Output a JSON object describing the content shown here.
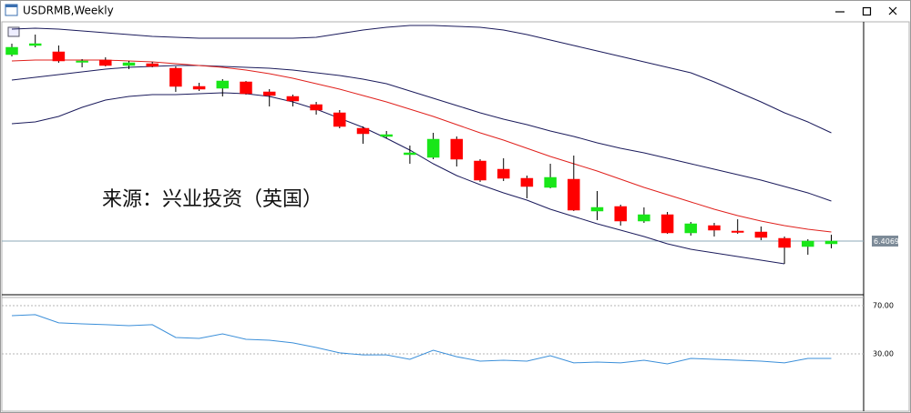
{
  "window": {
    "title": "USDRMB,Weekly"
  },
  "chart_data": [
    {
      "type": "candlestick",
      "annotation": "来源：兴业投资（英国）",
      "ylim": [
        6.2329,
        7.1269
      ],
      "current_price": 6.4069,
      "up_color": "#19e619",
      "down_color": "#ff0000",
      "wick_color": "#000000",
      "price_line_color": "#8eaab8",
      "open": [
        7.0219,
        7.0519,
        7.0309,
        6.9979,
        7.0039,
        6.9859,
        6.9919,
        6.9769,
        6.9169,
        6.9109,
        6.9319,
        6.8989,
        6.8839,
        6.8569,
        6.8299,
        6.7789,
        6.7519,
        6.6919,
        6.6829,
        6.7429,
        6.6709,
        6.6439,
        6.6139,
        6.5839,
        6.6109,
        6.5059,
        6.5209,
        6.4729,
        6.4939,
        6.4339,
        6.4579,
        6.4399,
        6.4369,
        6.4159,
        6.3889,
        6.3979
      ],
      "high": [
        7.0579,
        7.0879,
        7.0519,
        7.0069,
        7.0129,
        7.0009,
        6.9979,
        6.9829,
        6.9289,
        6.9409,
        6.9349,
        6.9079,
        6.8899,
        6.8659,
        6.8389,
        6.7849,
        6.7699,
        6.7219,
        6.7639,
        6.7519,
        6.6769,
        6.6799,
        6.6229,
        6.6619,
        6.6889,
        6.5719,
        6.5269,
        6.5179,
        6.5029,
        6.4699,
        6.4669,
        6.4789,
        6.4549,
        6.4219,
        6.4129,
        6.4279
      ],
      "low": [
        7.0159,
        7.0459,
        6.9949,
        6.9799,
        6.9829,
        6.9739,
        6.9799,
        6.8989,
        6.9019,
        6.8839,
        6.8899,
        6.8509,
        6.8509,
        6.8239,
        6.7789,
        6.7279,
        6.7459,
        6.6619,
        6.6769,
        6.6529,
        6.6019,
        6.6049,
        6.5479,
        6.5809,
        6.5059,
        6.4759,
        6.4579,
        6.4669,
        6.4309,
        6.4249,
        6.4219,
        6.4309,
        6.4099,
        6.3319,
        6.3619,
        6.3829
      ],
      "close": [
        7.0459,
        7.0579,
        7.0009,
        7.0009,
        6.9859,
        6.9949,
        6.9829,
        6.9169,
        6.9079,
        6.9349,
        6.8929,
        6.8869,
        6.8689,
        6.8389,
        6.7849,
        6.7609,
        6.7579,
        6.6979,
        6.7429,
        6.6769,
        6.6079,
        6.6139,
        6.5869,
        6.6169,
        6.5089,
        6.5179,
        6.4729,
        6.4939,
        6.4339,
        6.4639,
        6.4429,
        6.4369,
        6.4189,
        6.3859,
        6.4069,
        6.4069
      ],
      "series": [
        {
          "color": "#1b1b5c",
          "values": [
            7.1059,
            7.1089,
            7.1059,
            7.0999,
            7.0939,
            7.0879,
            7.0819,
            7.0789,
            7.0759,
            7.0759,
            7.0759,
            7.0759,
            7.0759,
            7.0789,
            7.0909,
            7.1029,
            7.1119,
            7.1179,
            7.1179,
            7.1149,
            7.1119,
            7.1029,
            7.0879,
            7.0699,
            7.0519,
            7.0339,
            7.0159,
            6.9979,
            6.9799,
            6.9619,
            6.9319,
            6.8989,
            6.8659,
            6.8299,
            6.7999,
            6.7639
          ]
        },
        {
          "color": "#1b1b5c",
          "values": [
            6.9379,
            6.9469,
            6.9559,
            6.9649,
            6.9739,
            6.9799,
            6.9829,
            6.9859,
            6.9859,
            6.9829,
            6.9799,
            6.9769,
            6.9709,
            6.9619,
            6.9529,
            6.9409,
            6.9259,
            6.9019,
            6.8779,
            6.8539,
            6.8299,
            6.8089,
            6.7909,
            6.7699,
            6.7519,
            6.7309,
            6.7129,
            6.6979,
            6.6799,
            6.6619,
            6.6439,
            6.6259,
            6.6079,
            6.5869,
            6.5659,
            6.5389
          ]
        },
        {
          "color": "#1b1b5c",
          "values": [
            6.7939,
            6.7999,
            6.8179,
            6.8479,
            6.8719,
            6.8839,
            6.8899,
            6.8899,
            6.8929,
            6.8959,
            6.8929,
            6.8839,
            6.8659,
            6.8419,
            6.8119,
            6.7819,
            6.7459,
            6.7069,
            6.6619,
            6.6229,
            6.5929,
            6.5659,
            6.5419,
            6.5119,
            6.4879,
            6.4639,
            6.4429,
            6.4219,
            6.3979,
            6.3799,
            6.3679,
            6.3559,
            6.3439,
            6.3319,
            null,
            null
          ]
        },
        {
          "color": "#e0201c",
          "values": [
            7.0009,
            7.0039,
            7.0039,
            7.0039,
            7.0039,
            7.0009,
            6.9979,
            6.9919,
            6.9859,
            6.9799,
            6.9709,
            6.9589,
            6.9439,
            6.9259,
            6.9079,
            6.8869,
            6.8659,
            6.8419,
            6.8179,
            6.7909,
            6.7639,
            6.7399,
            6.7129,
            6.6859,
            6.6619,
            6.6379,
            6.6109,
            6.5839,
            6.5599,
            6.5359,
            6.5119,
            6.4909,
            6.4729,
            6.4579,
            6.4459,
            6.4369
          ]
        }
      ]
    },
    {
      "type": "line",
      "ylim": [
        -16,
        76
      ],
      "yticks": [
        {
          "value": 70,
          "label": "70.00"
        },
        {
          "value": 30,
          "label": "30.00"
        }
      ],
      "series": [
        {
          "color": "#3b8fd9",
          "values": [
            61.7,
            62.5,
            55.7,
            54.9,
            54.2,
            53.4,
            54.2,
            43.6,
            42.8,
            46.6,
            42.1,
            41.3,
            39.1,
            35.3,
            30.8,
            29.2,
            29.2,
            25.5,
            33.0,
            27.7,
            24.0,
            24.7,
            24.0,
            28.5,
            22.5,
            23.2,
            22.5,
            24.7,
            21.7,
            26.2,
            25.5,
            24.7,
            24.0,
            22.5,
            26.2,
            26.2
          ]
        }
      ]
    }
  ]
}
